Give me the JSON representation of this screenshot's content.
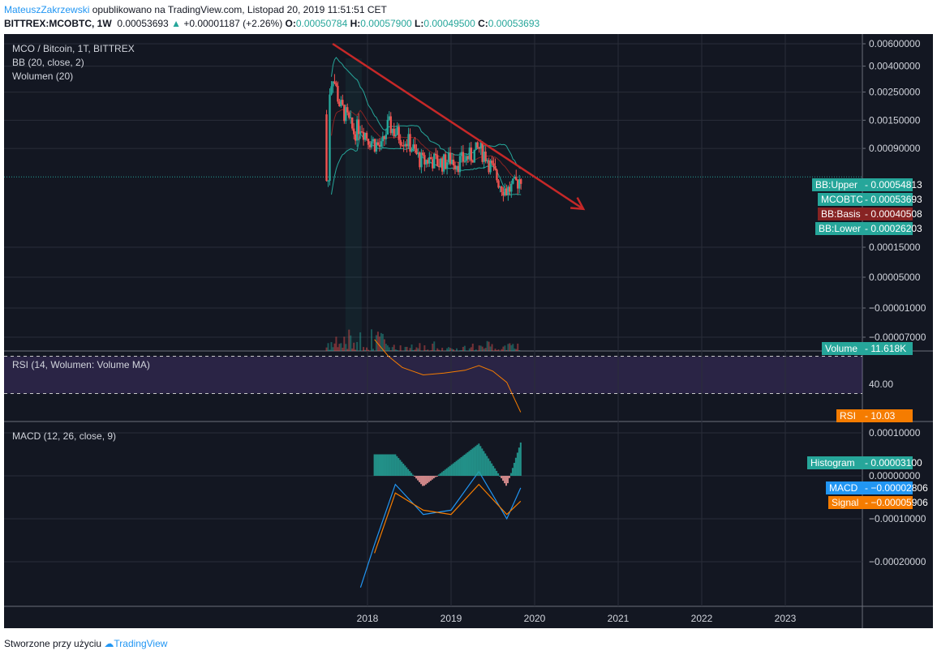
{
  "header": {
    "author": "MateuszZakrzewski",
    "published": "opublikowano na TradingView.com, Listopad 20, 2019 11:51:51 CET",
    "symbol": "BITTREX:MCOBTC, 1W",
    "price": "0.00053693",
    "change_arrow": "▲",
    "change": "+0.00001187 (+2.26%)",
    "o_label": "O:",
    "o": "0.00050784",
    "h_label": "H:",
    "h": "0.00057900",
    "l_label": "L:",
    "l": "0.00049500",
    "c_label": "C:",
    "c": "0.00053693"
  },
  "legend": {
    "main": "MCO / Bitcoin, 1T, BITTREX",
    "bb": "BB (20, close, 2)",
    "volume": "Wolumen (20)",
    "rsi": "RSI (14, Wolumen: Volume MA)",
    "macd": "MACD (12, 26, close, 9)"
  },
  "price_axis": [
    "0.00600000",
    "0.00400000",
    "0.00250000",
    "0.00150000",
    "0.00090000",
    "0.00015000",
    "0.00005000",
    "−0.00001000",
    "−0.00007000"
  ],
  "rsi_axis": [
    "40.00"
  ],
  "macd_axis": [
    "0.00010000",
    "0.00000000",
    "−0.00010000",
    "−0.00020000"
  ],
  "time_axis": [
    "2018",
    "2019",
    "2020",
    "2021",
    "2022",
    "2023"
  ],
  "price_tags": [
    {
      "label": "BB:Upper",
      "value": "0.00054813",
      "color": "#26a69a"
    },
    {
      "label": "MCOBTC",
      "value": "0.00053693",
      "color": "#26a69a"
    },
    {
      "label": "BB:Basis",
      "value": "0.00040508",
      "color": "#872323"
    },
    {
      "label": "BB:Lower",
      "value": "0.00026203",
      "color": "#26a69a"
    }
  ],
  "volume_tag": {
    "label": "Volume",
    "value": "11.618K",
    "color": "#26a69a"
  },
  "rsi_tag": {
    "label": "RSI",
    "value": "10.03",
    "color": "#f57c00"
  },
  "macd_tags": [
    {
      "label": "Histogram",
      "value": "0.00003100",
      "color": "#26a69a"
    },
    {
      "label": "MACD",
      "value": "−0.00002806",
      "color": "#2196f3"
    },
    {
      "label": "Signal",
      "value": "−0.00005906",
      "color": "#f57c00"
    }
  ],
  "footer": {
    "created": "Stworzone przy użyciu",
    "brand": "TradingView"
  },
  "colors": {
    "background": "#131722",
    "up": "#26a69a",
    "down": "#ef5350",
    "bb": "#26a69a",
    "trendline": "#c62828",
    "rsi": "#f57c00",
    "macd": "#2196f3",
    "signal": "#f57c00"
  },
  "chart_data": [
    {
      "type": "candlestick",
      "title": "MCO / Bitcoin, 1T, BITTREX",
      "x_range": [
        "2017-07",
        "2023-12"
      ],
      "y_scale": "log",
      "indicators": [
        "BB (20, close, 2)",
        "Wolumen (20)"
      ],
      "approx_close": [
        {
          "x": "2017-07",
          "y": 0.0017
        },
        {
          "x": "2017-08",
          "y": 0.0035
        },
        {
          "x": "2017-09",
          "y": 0.002
        },
        {
          "x": "2017-10",
          "y": 0.0016
        },
        {
          "x": "2017-11",
          "y": 0.0012
        },
        {
          "x": "2017-12",
          "y": 0.0014
        },
        {
          "x": "2018-01",
          "y": 0.0011
        },
        {
          "x": "2018-02",
          "y": 0.001
        },
        {
          "x": "2018-03",
          "y": 0.0009
        },
        {
          "x": "2018-04",
          "y": 0.0014
        },
        {
          "x": "2018-05",
          "y": 0.0012
        },
        {
          "x": "2018-06",
          "y": 0.0011
        },
        {
          "x": "2018-07",
          "y": 0.001
        },
        {
          "x": "2018-08",
          "y": 0.0008
        },
        {
          "x": "2018-09",
          "y": 0.0007
        },
        {
          "x": "2018-10",
          "y": 0.00075
        },
        {
          "x": "2018-11",
          "y": 0.0007
        },
        {
          "x": "2018-12",
          "y": 0.0007
        },
        {
          "x": "2019-01",
          "y": 0.00075
        },
        {
          "x": "2019-02",
          "y": 0.0007
        },
        {
          "x": "2019-03",
          "y": 0.00075
        },
        {
          "x": "2019-04",
          "y": 0.0008
        },
        {
          "x": "2019-05",
          "y": 0.0009
        },
        {
          "x": "2019-06",
          "y": 0.0008
        },
        {
          "x": "2019-07",
          "y": 0.0006
        },
        {
          "x": "2019-08",
          "y": 0.00048
        },
        {
          "x": "2019-09",
          "y": 0.00042
        },
        {
          "x": "2019-10",
          "y": 0.00045
        },
        {
          "x": "2019-11",
          "y": 0.00053693
        }
      ],
      "last": {
        "close": 0.00053693,
        "bb_upper": 0.00054813,
        "bb_basis": 0.00040508,
        "bb_lower": 0.00026203,
        "volume": "11.618K"
      },
      "trendline": {
        "from": {
          "x": "2017-08",
          "y": 0.006
        },
        "to": {
          "x": "2020-08",
          "y": 0.0003
        }
      }
    },
    {
      "type": "line",
      "title": "RSI (14, Wolumen: Volume MA)",
      "series": [
        {
          "name": "RSI",
          "values": [
            {
              "x": "2018-02",
              "y": 88
            },
            {
              "x": "2018-04",
              "y": 70
            },
            {
              "x": "2018-06",
              "y": 58
            },
            {
              "x": "2018-09",
              "y": 50
            },
            {
              "x": "2018-12",
              "y": 52
            },
            {
              "x": "2019-03",
              "y": 55
            },
            {
              "x": "2019-05",
              "y": 60
            },
            {
              "x": "2019-07",
              "y": 54
            },
            {
              "x": "2019-09",
              "y": 42
            },
            {
              "x": "2019-11",
              "y": 10.03
            }
          ]
        }
      ],
      "bands": [
        70,
        30
      ]
    },
    {
      "type": "bar",
      "title": "MACD (12, 26, close, 9)",
      "series": [
        {
          "name": "Histogram",
          "last": 3.1e-05
        },
        {
          "name": "MACD",
          "last": -2.806e-05,
          "values": [
            {
              "x": "2017-12",
              "y": -0.00026
            },
            {
              "x": "2018-02",
              "y": -0.00016
            },
            {
              "x": "2018-05",
              "y": -2e-05
            },
            {
              "x": "2018-09",
              "y": -9e-05
            },
            {
              "x": "2019-01",
              "y": -8e-05
            },
            {
              "x": "2019-05",
              "y": 1e-05
            },
            {
              "x": "2019-09",
              "y": -0.0001
            },
            {
              "x": "2019-11",
              "y": -2.806e-05
            }
          ]
        },
        {
          "name": "Signal",
          "last": -5.906e-05,
          "values": [
            {
              "x": "2018-02",
              "y": -0.00018
            },
            {
              "x": "2018-05",
              "y": -4e-05
            },
            {
              "x": "2018-09",
              "y": -8e-05
            },
            {
              "x": "2019-01",
              "y": -9e-05
            },
            {
              "x": "2019-05",
              "y": -2e-05
            },
            {
              "x": "2019-09",
              "y": -9e-05
            },
            {
              "x": "2019-11",
              "y": -5.906e-05
            }
          ]
        }
      ]
    }
  ]
}
